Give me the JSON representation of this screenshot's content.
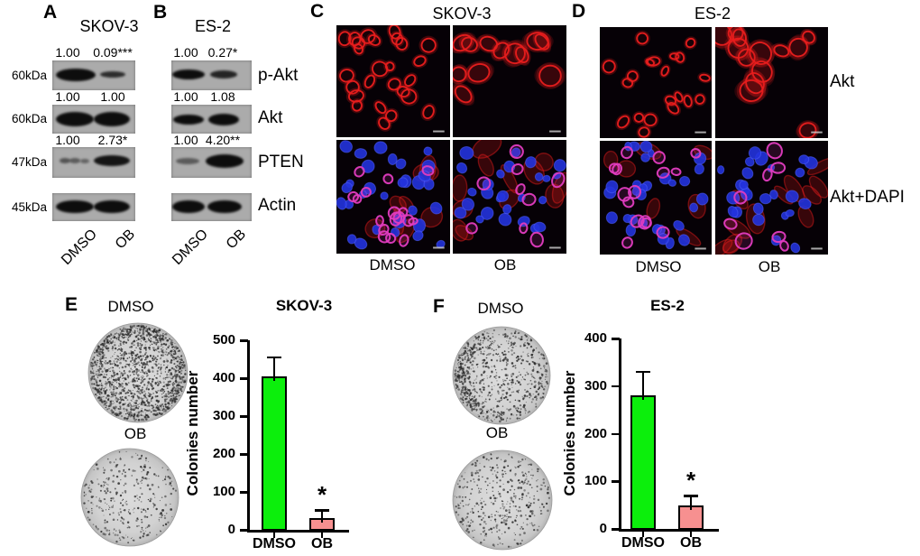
{
  "figure": {
    "panels": {
      "A": {
        "letter": "A",
        "title": "SKOV-3",
        "rows": [
          {
            "kda": "60kDa",
            "values": [
              "1.00",
              "0.09***"
            ]
          },
          {
            "kda": "60kDa",
            "values": [
              "1.00",
              "1.00"
            ]
          },
          {
            "kda": "47kDa",
            "values": [
              "1.00",
              "2.73*"
            ]
          },
          {
            "kda": "45kDa",
            "values": []
          }
        ],
        "lane_labels": [
          "DMSO",
          "OB"
        ]
      },
      "B": {
        "letter": "B",
        "title": "ES-2",
        "rows": [
          {
            "values": [
              "1.00",
              "0.27*"
            ]
          },
          {
            "values": [
              "1.00",
              "1.08"
            ]
          },
          {
            "values": [
              "1.00",
              "4.20**"
            ]
          },
          {
            "values": []
          }
        ],
        "lane_labels": [
          "DMSO",
          "OB"
        ]
      },
      "blot_protein_labels": [
        "p-Akt",
        "Akt",
        "PTEN",
        "Actin"
      ],
      "C": {
        "letter": "C",
        "title": "SKOV-3",
        "col_labels": [
          "DMSO",
          "OB"
        ]
      },
      "D": {
        "letter": "D",
        "title": "ES-2",
        "col_labels": [
          "DMSO",
          "OB"
        ],
        "row_labels": [
          "Akt",
          "Akt+DAPI"
        ]
      },
      "E": {
        "letter": "E",
        "dish_labels": [
          "DMSO",
          "OB"
        ]
      },
      "F": {
        "letter": "F",
        "dish_labels": [
          "DMSO",
          "OB"
        ]
      }
    },
    "stain_colors": {
      "akt_red": "#e81d1d",
      "dapi_blue": "#2433de",
      "merge_magenta": "#e23cc0"
    }
  },
  "chart_data": [
    {
      "type": "bar",
      "panel": "E",
      "title": "SKOV-3",
      "ylabel": "Colonies number",
      "xlabel": "",
      "categories": [
        "DMSO",
        "OB"
      ],
      "values": [
        405,
        32
      ],
      "errors_plus": [
        50,
        20
      ],
      "ylim": [
        0,
        500
      ],
      "yticks": [
        0,
        100,
        200,
        300,
        400,
        500
      ],
      "bar_colors": [
        "#0cef0c",
        "#f79090"
      ],
      "significance": [
        "",
        "*"
      ],
      "grid": false,
      "legend": "none"
    },
    {
      "type": "bar",
      "panel": "F",
      "title": "ES-2",
      "ylabel": "Colonies number",
      "xlabel": "",
      "categories": [
        "DMSO",
        "OB"
      ],
      "values": [
        280,
        50
      ],
      "errors_plus": [
        50,
        20
      ],
      "ylim": [
        0,
        400
      ],
      "yticks": [
        0,
        100,
        200,
        300,
        400
      ],
      "bar_colors": [
        "#0cef0c",
        "#f79090"
      ],
      "significance": [
        "",
        "*"
      ],
      "grid": false,
      "legend": "none"
    }
  ]
}
